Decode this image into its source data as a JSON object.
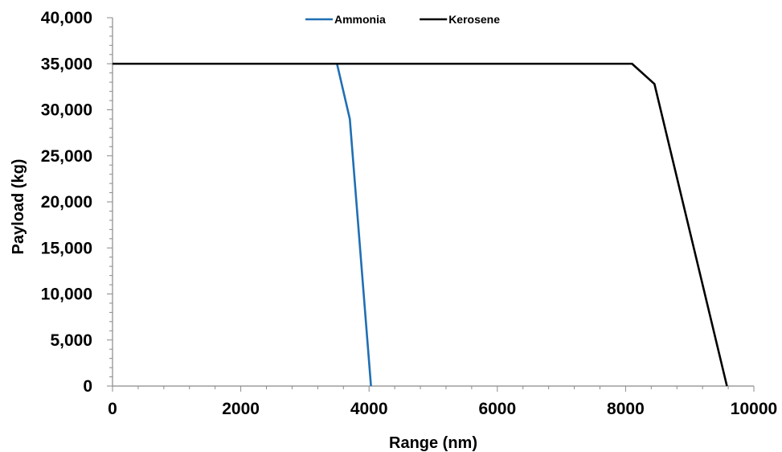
{
  "chart_data": {
    "type": "line",
    "title": "",
    "xlabel": "Range (nm)",
    "ylabel": "Payload (kg)",
    "xlim": [
      0,
      10000
    ],
    "ylim": [
      0,
      40000
    ],
    "x_ticks": [
      0,
      2000,
      4000,
      6000,
      8000,
      10000
    ],
    "x_tick_labels": [
      "0",
      "2000",
      "4000",
      "6000",
      "8000",
      "10000"
    ],
    "y_ticks": [
      0,
      5000,
      10000,
      15000,
      20000,
      25000,
      30000,
      35000,
      40000
    ],
    "y_tick_labels": [
      "0",
      "5,000",
      "10,000",
      "15,000",
      "20,000",
      "25,000",
      "30,000",
      "35,000",
      "40,000"
    ],
    "grid": false,
    "legend_position": "top-center",
    "series": [
      {
        "name": "Ammonia",
        "color": "#1f6fb4",
        "x": [
          0,
          3500,
          3700,
          4030
        ],
        "y": [
          35000,
          35000,
          29000,
          0
        ]
      },
      {
        "name": "Kerosene",
        "color": "#000000",
        "x": [
          0,
          8100,
          8450,
          9580
        ],
        "y": [
          35000,
          35000,
          32800,
          0
        ]
      }
    ]
  }
}
